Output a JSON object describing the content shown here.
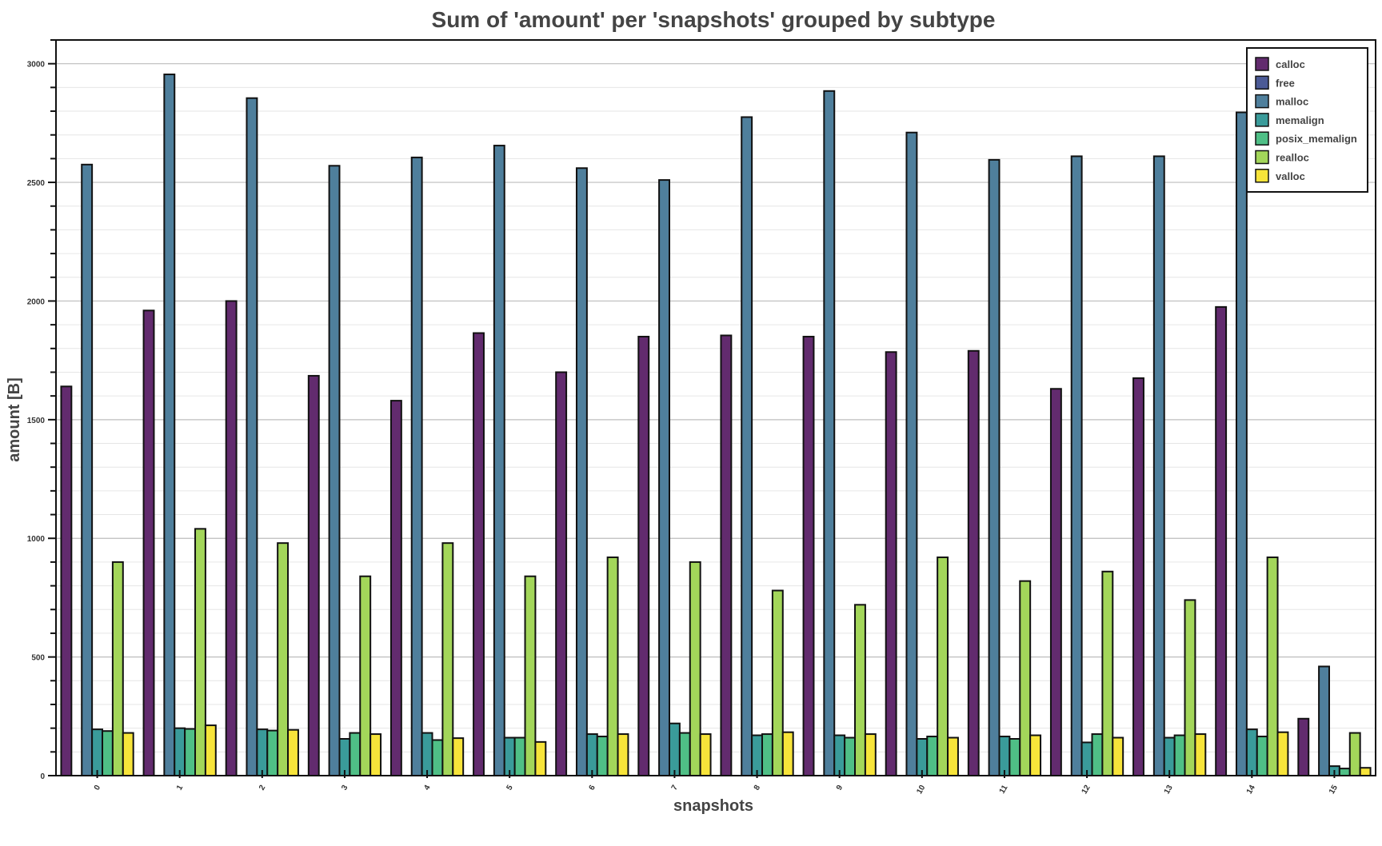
{
  "chart_data": {
    "type": "bar",
    "title": "Sum of 'amount' per 'snapshots' grouped by subtype",
    "xlabel": "snapshots",
    "ylabel": "amount [B]",
    "ylim": [
      0,
      3100
    ],
    "yticks": [
      0,
      500,
      1000,
      1500,
      2000,
      2500,
      3000
    ],
    "categories": [
      "0",
      "1",
      "2",
      "3",
      "4",
      "5",
      "6",
      "7",
      "8",
      "9",
      "10",
      "11",
      "12",
      "13",
      "14",
      "15"
    ],
    "grid": true,
    "legend_position": "top-right",
    "series": [
      {
        "name": "calloc",
        "color": "#622b6e",
        "values": [
          1640,
          1960,
          2000,
          1685,
          1580,
          1865,
          1700,
          1850,
          1855,
          1850,
          1785,
          1790,
          1630,
          1675,
          1975,
          240
        ]
      },
      {
        "name": "free",
        "color": "#4b5a96",
        "values": [
          0,
          0,
          0,
          0,
          0,
          0,
          0,
          0,
          0,
          0,
          0,
          0,
          0,
          0,
          0,
          0
        ]
      },
      {
        "name": "malloc",
        "color": "#4f7f9c",
        "values": [
          2575,
          2955,
          2855,
          2570,
          2605,
          2655,
          2560,
          2510,
          2775,
          2885,
          2710,
          2595,
          2610,
          2610,
          2795,
          460
        ]
      },
      {
        "name": "memalign",
        "color": "#3a9b9a",
        "values": [
          195,
          200,
          195,
          155,
          180,
          160,
          175,
          220,
          170,
          170,
          155,
          165,
          140,
          160,
          195,
          40
        ]
      },
      {
        "name": "posix_memalign",
        "color": "#4fbf86",
        "values": [
          188,
          197,
          190,
          180,
          150,
          160,
          165,
          180,
          175,
          160,
          165,
          155,
          175,
          170,
          165,
          30
        ]
      },
      {
        "name": "realloc",
        "color": "#a3d65a",
        "values": [
          900,
          1040,
          980,
          840,
          980,
          840,
          920,
          900,
          780,
          720,
          920,
          820,
          860,
          740,
          920,
          180
        ]
      },
      {
        "name": "valloc",
        "color": "#f7e43a",
        "values": [
          180,
          212,
          193,
          175,
          158,
          142,
          175,
          175,
          183,
          175,
          160,
          170,
          160,
          175,
          183,
          33
        ]
      }
    ]
  }
}
